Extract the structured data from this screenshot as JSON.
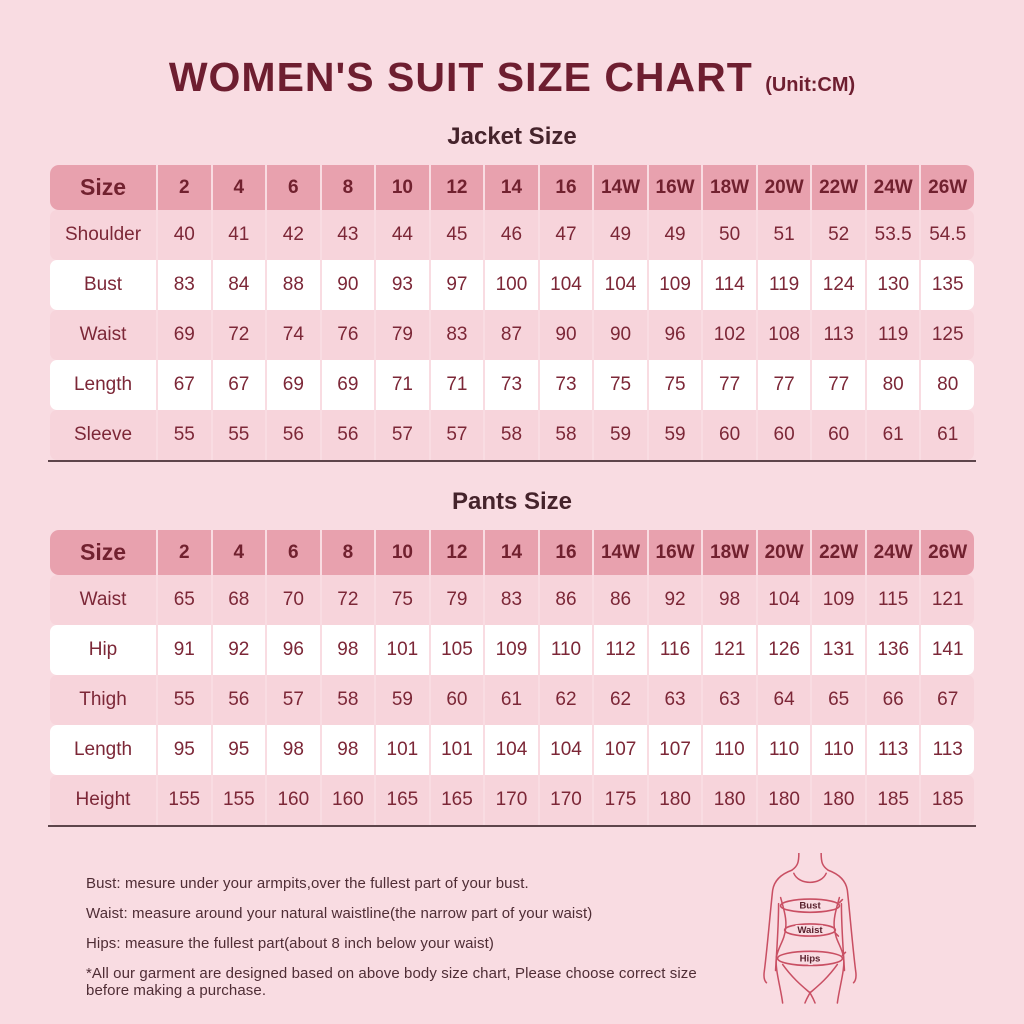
{
  "title": {
    "main": "WOMEN'S SUIT SIZE CHART",
    "unit": "(Unit:CM)"
  },
  "colors": {
    "page_background": "#f9dce2",
    "table_header": "#e8a1ae",
    "row_pink": "#f7d4db",
    "row_white": "#ffffff",
    "text_maroon": "#7c2737",
    "title_maroon": "#6e1e30",
    "figure_outline": "#c94f63"
  },
  "jacket": {
    "heading": "Jacket Size",
    "columns": [
      "Size",
      "2",
      "4",
      "6",
      "8",
      "10",
      "12",
      "14",
      "16",
      "14W",
      "16W",
      "18W",
      "20W",
      "22W",
      "24W",
      "26W"
    ],
    "rows": [
      {
        "label": "Shoulder",
        "values": [
          "40",
          "41",
          "42",
          "43",
          "44",
          "45",
          "46",
          "47",
          "49",
          "49",
          "50",
          "51",
          "52",
          "53.5",
          "54.5"
        ]
      },
      {
        "label": "Bust",
        "values": [
          "83",
          "84",
          "88",
          "90",
          "93",
          "97",
          "100",
          "104",
          "104",
          "109",
          "114",
          "119",
          "124",
          "130",
          "135"
        ]
      },
      {
        "label": "Waist",
        "values": [
          "69",
          "72",
          "74",
          "76",
          "79",
          "83",
          "87",
          "90",
          "90",
          "96",
          "102",
          "108",
          "113",
          "119",
          "125"
        ]
      },
      {
        "label": "Length",
        "values": [
          "67",
          "67",
          "69",
          "69",
          "71",
          "71",
          "73",
          "73",
          "75",
          "75",
          "77",
          "77",
          "77",
          "80",
          "80"
        ]
      },
      {
        "label": "Sleeve",
        "values": [
          "55",
          "55",
          "56",
          "56",
          "57",
          "57",
          "58",
          "58",
          "59",
          "59",
          "60",
          "60",
          "60",
          "61",
          "61"
        ]
      }
    ]
  },
  "pants": {
    "heading": "Pants Size",
    "columns": [
      "Size",
      "2",
      "4",
      "6",
      "8",
      "10",
      "12",
      "14",
      "16",
      "14W",
      "16W",
      "18W",
      "20W",
      "22W",
      "24W",
      "26W"
    ],
    "rows": [
      {
        "label": "Waist",
        "values": [
          "65",
          "68",
          "70",
          "72",
          "75",
          "79",
          "83",
          "86",
          "86",
          "92",
          "98",
          "104",
          "109",
          "115",
          "121"
        ]
      },
      {
        "label": "Hip",
        "values": [
          "91",
          "92",
          "96",
          "98",
          "101",
          "105",
          "109",
          "110",
          "112",
          "116",
          "121",
          "126",
          "131",
          "136",
          "141"
        ]
      },
      {
        "label": "Thigh",
        "values": [
          "55",
          "56",
          "57",
          "58",
          "59",
          "60",
          "61",
          "62",
          "62",
          "63",
          "63",
          "64",
          "65",
          "66",
          "67"
        ]
      },
      {
        "label": "Length",
        "values": [
          "95",
          "95",
          "98",
          "98",
          "101",
          "101",
          "104",
          "104",
          "107",
          "107",
          "110",
          "110",
          "110",
          "113",
          "113"
        ]
      },
      {
        "label": "Height",
        "values": [
          "155",
          "155",
          "160",
          "160",
          "165",
          "165",
          "170",
          "170",
          "175",
          "180",
          "180",
          "180",
          "180",
          "185",
          "185"
        ]
      }
    ]
  },
  "notes": [
    "Bust: mesure under your armpits,over the fullest part of your bust.",
    "Waist: measure around your natural waistline(the narrow part of your waist)",
    "Hips: measure the fullest part(about 8 inch below your waist)",
    "*All our garment are designed based on above body size chart, Please choose correct size before making a purchase."
  ],
  "figure": {
    "labels": [
      "Bust",
      "Waist",
      "Hips"
    ]
  }
}
